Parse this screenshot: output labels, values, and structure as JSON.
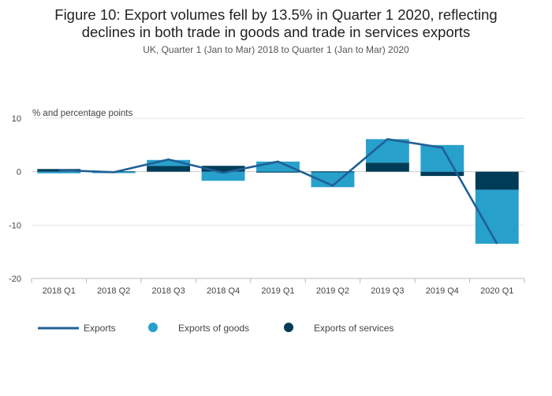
{
  "title_lines": [
    "Figure 10: Export volumes fell by 13.5% in Quarter 1 2020, reflecting",
    "declines in both trade in goods and trade in services exports"
  ],
  "subtitle": "UK, Quarter 1 (Jan to Mar) 2018 to Quarter 1 (Jan to Mar) 2020",
  "colors": {
    "exports_line": "#206095",
    "goods": "#27a0cc",
    "services": "#003c57",
    "grid": "#e6e6e6",
    "axis": "#bbbbbb"
  },
  "chart_data": {
    "type": "bar",
    "stacked": true,
    "unit_label": "% and percentage points",
    "categories": [
      "2018 Q1",
      "2018 Q2",
      "2018 Q3",
      "2018 Q4",
      "2019 Q1",
      "2019 Q2",
      "2019 Q3",
      "2019 Q4",
      "2020 Q1"
    ],
    "ylim": [
      -20,
      10
    ],
    "yticks": [
      10,
      0,
      -10,
      -20
    ],
    "ytick_labels": [
      "10",
      "0",
      "-10",
      "-20"
    ],
    "grid": true,
    "legend_position": "bottom",
    "series": [
      {
        "name": "Exports of services",
        "kind": "bar",
        "color": "#003c57",
        "values": [
          0.5,
          -0.1,
          1.1,
          1.1,
          -0.1,
          -0.1,
          1.7,
          -0.8,
          -3.4
        ]
      },
      {
        "name": "Exports of goods",
        "kind": "bar",
        "color": "#27a0cc",
        "values": [
          -0.3,
          -0.1,
          1.1,
          -1.7,
          1.9,
          -2.8,
          4.4,
          5.0,
          -10.1
        ]
      },
      {
        "name": "Exports",
        "kind": "line",
        "color": "#206095",
        "values": [
          0.3,
          -0.1,
          2.3,
          -0.2,
          1.9,
          -2.6,
          6.1,
          4.5,
          -13.5
        ]
      }
    ],
    "legend": [
      {
        "name": "Exports",
        "symbol": "line",
        "color": "#206095"
      },
      {
        "name": "Exports of goods",
        "symbol": "circle",
        "color": "#27a0cc"
      },
      {
        "name": "Exports of services",
        "symbol": "circle",
        "color": "#003c57"
      }
    ]
  }
}
